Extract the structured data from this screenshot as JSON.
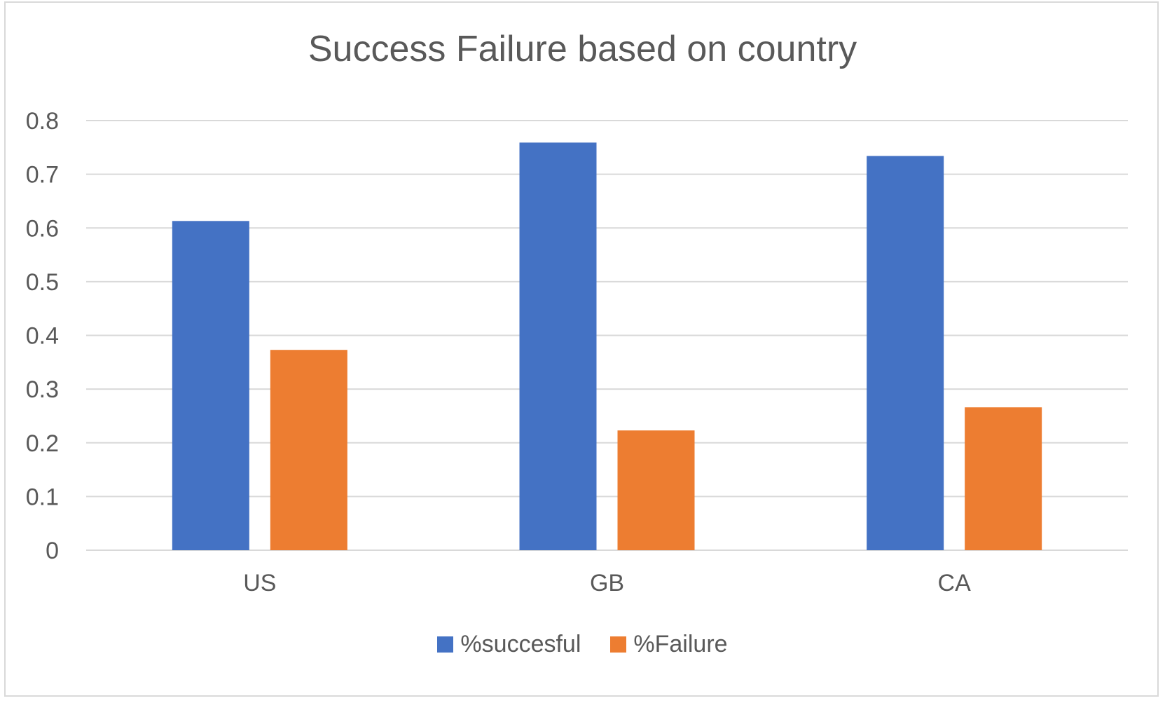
{
  "chart_data": {
    "type": "bar",
    "title": "Success Failure based on country",
    "categories": [
      "US",
      "GB",
      "CA"
    ],
    "series": [
      {
        "name": "%succesful",
        "values": [
          0.613,
          0.759,
          0.734
        ],
        "color": "#4472C4"
      },
      {
        "name": "%Failure",
        "values": [
          0.373,
          0.223,
          0.266
        ],
        "color": "#ED7D31"
      }
    ],
    "ylim": [
      0,
      0.8
    ],
    "yticks": [
      "0",
      "0.1",
      "0.2",
      "0.3",
      "0.4",
      "0.5",
      "0.6",
      "0.7",
      "0.8"
    ],
    "grid": true,
    "legend": "bottom"
  }
}
